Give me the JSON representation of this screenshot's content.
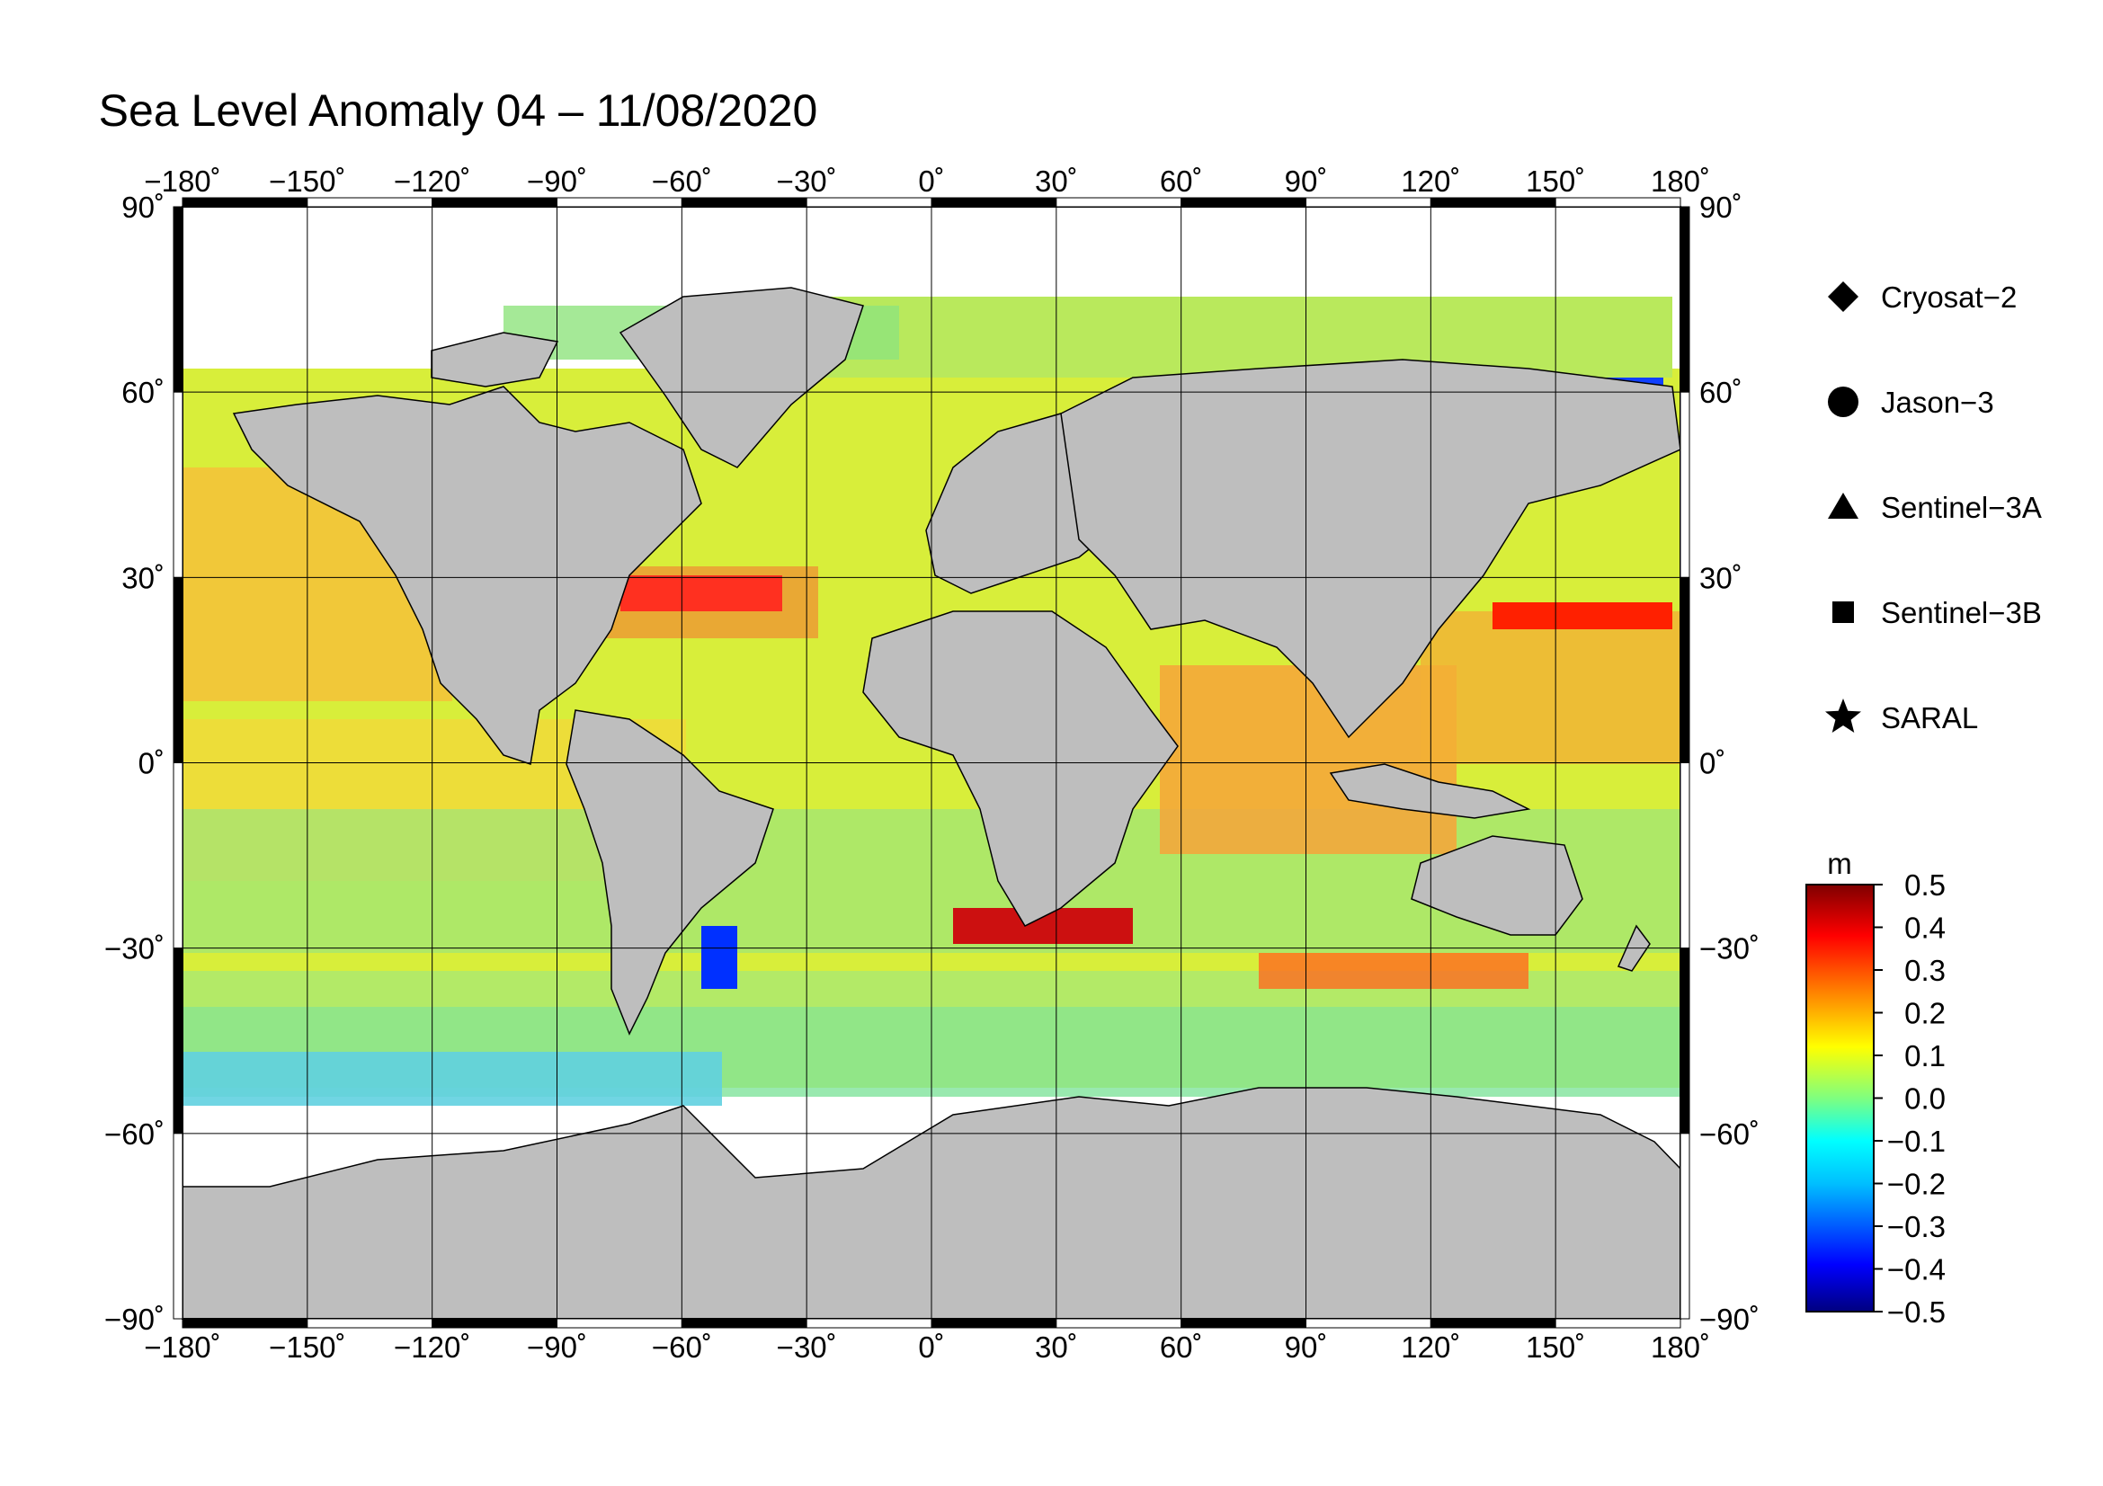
{
  "title": "Sea Level Anomaly 04 – 11/08/2020",
  "map": {
    "projection": "equirectangular",
    "lon_range": [
      -180,
      180
    ],
    "lat_range": [
      -90,
      90
    ],
    "lon_ticks": [
      "−180˚",
      "−150˚",
      "−120˚",
      "−90˚",
      "−60˚",
      "−30˚",
      "0˚",
      "30˚",
      "60˚",
      "90˚",
      "120˚",
      "150˚",
      "180˚"
    ],
    "lat_ticks": [
      "90˚",
      "60˚",
      "30˚",
      "0˚",
      "−30˚",
      "−60˚",
      "−90˚"
    ],
    "land_color": "#bebebe",
    "grid": true
  },
  "legend": {
    "items": [
      {
        "label": "Cryosat−2",
        "symbol": "diamond"
      },
      {
        "label": "Jason−3",
        "symbol": "circle"
      },
      {
        "label": "Sentinel−3A",
        "symbol": "triangle"
      },
      {
        "label": "Sentinel−3B",
        "symbol": "square"
      },
      {
        "label": "SARAL",
        "symbol": "star"
      }
    ]
  },
  "colorbar": {
    "unit": "m",
    "min": -0.5,
    "max": 0.5,
    "tick_labels": [
      "0.5",
      "0.4",
      "0.3",
      "0.2",
      "0.1",
      "0.0",
      "−0.1",
      "−0.2",
      "−0.3",
      "−0.4",
      "−0.5"
    ],
    "colors": [
      "#00007f",
      "#0000ff",
      "#007fff",
      "#00ffff",
      "#7fff7f",
      "#ffff00",
      "#ff7f00",
      "#ff0000",
      "#7f0000"
    ]
  }
}
